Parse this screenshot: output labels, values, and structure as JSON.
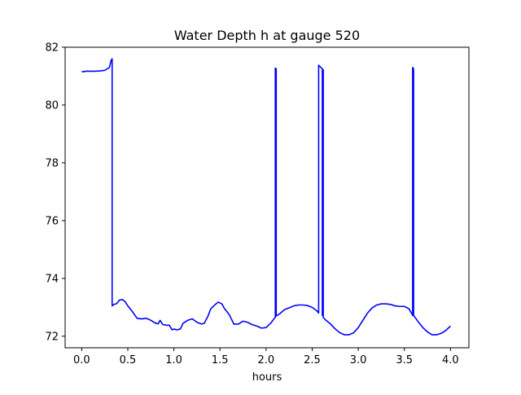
{
  "chart_data": {
    "type": "line",
    "title": "Water Depth h at gauge 520",
    "xlabel": "hours",
    "ylabel": "",
    "xlim": [
      -0.18,
      4.2
    ],
    "ylim": [
      71.6,
      82.0
    ],
    "xticks": [
      0.0,
      0.5,
      1.0,
      1.5,
      2.0,
      2.5,
      3.0,
      3.5,
      4.0
    ],
    "xtick_labels": [
      "0.0",
      "0.5",
      "1.0",
      "1.5",
      "2.0",
      "2.5",
      "3.0",
      "3.5",
      "4.0"
    ],
    "yticks": [
      72,
      74,
      76,
      78,
      80,
      82
    ],
    "ytick_labels": [
      "72",
      "74",
      "76",
      "78",
      "80",
      "82"
    ],
    "grid": false,
    "legend": "none",
    "series": [
      {
        "color": "#0000ff",
        "x": [
          0.0,
          0.05,
          0.1,
          0.15,
          0.2,
          0.25,
          0.3,
          0.32,
          0.33,
          0.33,
          0.35,
          0.38,
          0.41,
          0.44,
          0.47,
          0.5,
          0.55,
          0.6,
          0.65,
          0.7,
          0.75,
          0.8,
          0.83,
          0.85,
          0.88,
          0.92,
          0.95,
          0.98,
          1.0,
          1.03,
          1.07,
          1.1,
          1.15,
          1.2,
          1.25,
          1.3,
          1.33,
          1.37,
          1.4,
          1.45,
          1.48,
          1.52,
          1.55,
          1.6,
          1.65,
          1.7,
          1.75,
          1.8,
          1.85,
          1.9,
          1.95,
          2.0,
          2.05,
          2.09,
          2.1,
          2.1,
          2.11,
          2.11,
          2.15,
          2.2,
          2.25,
          2.3,
          2.35,
          2.4,
          2.45,
          2.5,
          2.55,
          2.57,
          2.57,
          2.6,
          2.61,
          2.61,
          2.62,
          2.62,
          2.65,
          2.7,
          2.75,
          2.8,
          2.85,
          2.9,
          2.95,
          3.0,
          3.05,
          3.1,
          3.15,
          3.2,
          3.25,
          3.3,
          3.35,
          3.4,
          3.45,
          3.5,
          3.55,
          3.58,
          3.59,
          3.59,
          3.6,
          3.6,
          3.65,
          3.7,
          3.75,
          3.8,
          3.85,
          3.9,
          3.95,
          4.0
        ],
        "y": [
          81.15,
          81.17,
          81.17,
          81.17,
          81.18,
          81.2,
          81.3,
          81.55,
          81.6,
          73.05,
          73.1,
          73.13,
          73.25,
          73.27,
          73.2,
          73.05,
          72.85,
          72.62,
          72.6,
          72.62,
          72.55,
          72.45,
          72.43,
          72.55,
          72.4,
          72.38,
          72.38,
          72.22,
          72.25,
          72.22,
          72.25,
          72.45,
          72.55,
          72.6,
          72.48,
          72.42,
          72.45,
          72.7,
          72.95,
          73.1,
          73.18,
          73.12,
          72.95,
          72.75,
          72.42,
          72.42,
          72.52,
          72.48,
          72.4,
          72.35,
          72.28,
          72.3,
          72.45,
          72.62,
          72.65,
          81.28,
          81.25,
          72.7,
          72.78,
          72.92,
          72.98,
          73.05,
          73.08,
          73.08,
          73.06,
          73.0,
          72.88,
          72.8,
          81.38,
          81.28,
          81.25,
          72.72,
          81.22,
          72.65,
          72.55,
          72.42,
          72.25,
          72.12,
          72.05,
          72.05,
          72.12,
          72.3,
          72.55,
          72.8,
          72.98,
          73.08,
          73.12,
          73.12,
          73.1,
          73.05,
          73.03,
          73.03,
          72.95,
          72.78,
          72.72,
          81.3,
          81.25,
          72.72,
          72.5,
          72.3,
          72.15,
          72.05,
          72.05,
          72.1,
          72.2,
          72.35
        ]
      }
    ]
  }
}
